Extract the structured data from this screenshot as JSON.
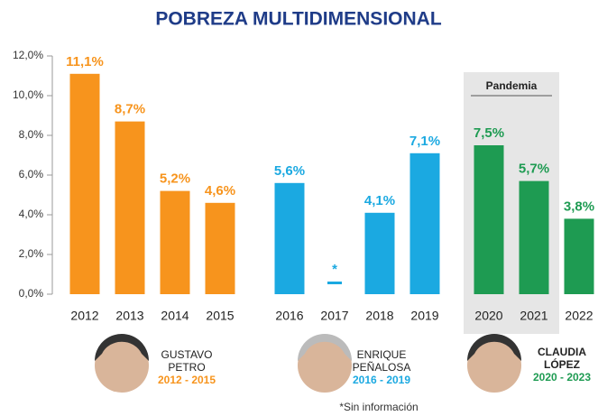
{
  "chart_data": {
    "type": "bar",
    "title": "POBREZA MULTIDIMENSIONAL",
    "ylim": [
      0,
      12
    ],
    "yticks": [
      {
        "value": 0,
        "label": "0,0%"
      },
      {
        "value": 2,
        "label": "2,0%"
      },
      {
        "value": 4,
        "label": "4,0%"
      },
      {
        "value": 6,
        "label": "6,0%"
      },
      {
        "value": 8,
        "label": "8,0%"
      },
      {
        "value": 10,
        "label": "10,0%"
      },
      {
        "value": 12,
        "label": "12,0%"
      }
    ],
    "series": [
      {
        "name": "GUSTAVO PETRO",
        "period": "2012 - 2015",
        "color": "#f7941d",
        "categories": [
          "2012",
          "2013",
          "2014",
          "2015"
        ],
        "values": [
          11.1,
          8.7,
          5.2,
          4.6
        ],
        "value_labels": [
          "11,1%",
          "8,7%",
          "5,2%",
          "4,6%"
        ]
      },
      {
        "name": "ENRIQUE PEÑALOSA",
        "period": "2016 - 2019",
        "color": "#1ba9e1",
        "categories": [
          "2016",
          "2017",
          "2018",
          "2019"
        ],
        "values": [
          5.6,
          null,
          4.1,
          7.1
        ],
        "value_labels": [
          "5,6%",
          "*",
          "4,1%",
          "7,1%"
        ]
      },
      {
        "name": "CLAUDIA LÓPEZ",
        "period": "2020 - 2023",
        "color": "#1e9b52",
        "categories": [
          "2020",
          "2021",
          "2022"
        ],
        "values": [
          7.5,
          5.7,
          3.8
        ],
        "value_labels": [
          "7,5%",
          "5,7%",
          "3,8%"
        ]
      }
    ],
    "annotation": "Pandemia",
    "footnote": "*Sin información"
  }
}
